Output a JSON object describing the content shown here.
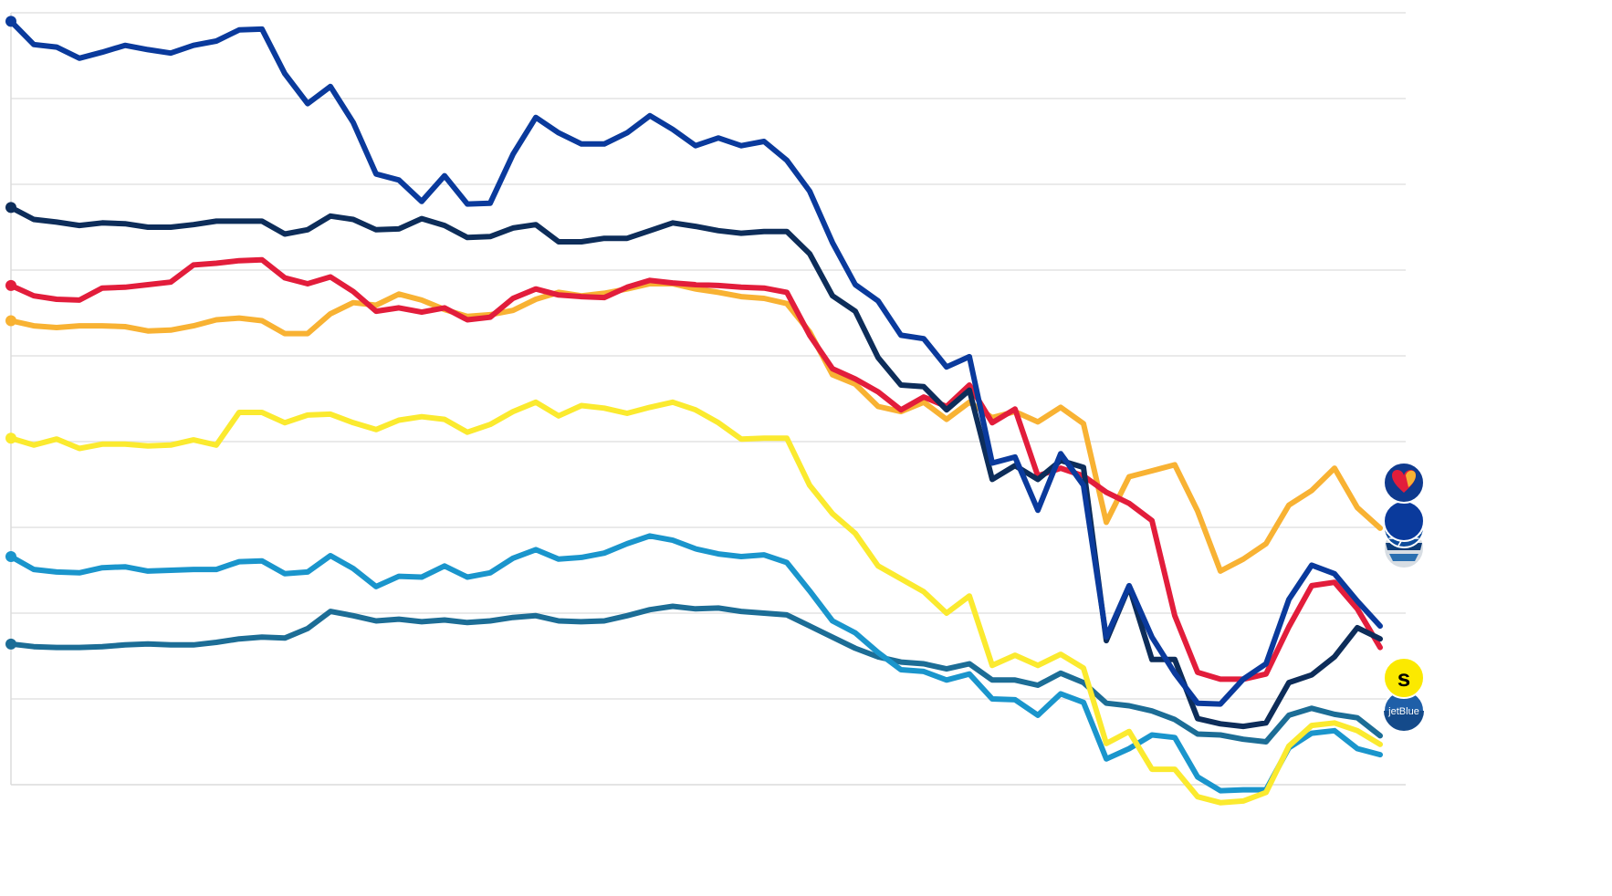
{
  "chart_data": {
    "type": "line",
    "title": "",
    "xlabel": "",
    "ylabel": "",
    "x_count": 61,
    "ylim": [
      0,
      9
    ],
    "grid": "horizontal",
    "series": [
      {
        "logo": "plane-logo-icon",
        "color": "#0a3a9c",
        "values": [
          8.9,
          8.63,
          8.6,
          8.47,
          8.54,
          8.62,
          8.57,
          8.53,
          8.62,
          8.67,
          8.8,
          8.81,
          8.29,
          7.94,
          8.14,
          7.72,
          7.12,
          7.05,
          6.8,
          7.1,
          6.77,
          6.78,
          7.35,
          7.78,
          7.6,
          7.47,
          7.47,
          7.6,
          7.8,
          7.64,
          7.45,
          7.54,
          7.45,
          7.5,
          7.28,
          6.92,
          6.32,
          5.83,
          5.64,
          5.24,
          5.2,
          4.87,
          4.99,
          3.75,
          3.82,
          3.2,
          3.86,
          3.49,
          1.72,
          2.32,
          1.72,
          1.3,
          0.95,
          0.94,
          1.23,
          1.41,
          2.16,
          2.56,
          2.46,
          2.14,
          1.85
        ]
      },
      {
        "logo": "united-globe-logo-icon",
        "color": "#0d2d5a",
        "values": [
          6.73,
          6.59,
          6.56,
          6.52,
          6.55,
          6.54,
          6.5,
          6.5,
          6.53,
          6.57,
          6.57,
          6.57,
          6.42,
          6.47,
          6.63,
          6.59,
          6.47,
          6.48,
          6.6,
          6.52,
          6.38,
          6.39,
          6.49,
          6.53,
          6.33,
          6.33,
          6.37,
          6.37,
          6.46,
          6.55,
          6.51,
          6.46,
          6.43,
          6.45,
          6.45,
          6.19,
          5.7,
          5.52,
          4.98,
          4.66,
          4.64,
          4.37,
          4.6,
          3.56,
          3.72,
          3.56,
          3.78,
          3.7,
          1.68,
          2.31,
          1.46,
          1.46,
          0.77,
          0.71,
          0.68,
          0.72,
          1.19,
          1.28,
          1.49,
          1.83,
          1.7
        ]
      },
      {
        "logo": "eagle-logo-icon",
        "color": "#e21d3b",
        "values": [
          5.82,
          5.7,
          5.66,
          5.65,
          5.79,
          5.8,
          5.83,
          5.86,
          6.06,
          6.08,
          6.11,
          6.12,
          5.91,
          5.84,
          5.92,
          5.75,
          5.52,
          5.56,
          5.51,
          5.56,
          5.42,
          5.45,
          5.67,
          5.78,
          5.71,
          5.69,
          5.68,
          5.8,
          5.88,
          5.85,
          5.83,
          5.82,
          5.8,
          5.79,
          5.74,
          5.24,
          4.85,
          4.73,
          4.58,
          4.37,
          4.52,
          4.41,
          4.66,
          4.22,
          4.38,
          3.6,
          3.69,
          3.6,
          3.41,
          3.28,
          3.08,
          1.97,
          1.31,
          1.23,
          1.23,
          1.29,
          1.84,
          2.32,
          2.36,
          2.05,
          1.6
        ]
      },
      {
        "logo": "southwest-heart-logo-icon",
        "color": "#f8b233",
        "values": [
          5.41,
          5.35,
          5.33,
          5.35,
          5.35,
          5.34,
          5.29,
          5.3,
          5.35,
          5.42,
          5.44,
          5.41,
          5.26,
          5.26,
          5.49,
          5.62,
          5.59,
          5.72,
          5.65,
          5.54,
          5.46,
          5.48,
          5.53,
          5.66,
          5.74,
          5.7,
          5.73,
          5.78,
          5.84,
          5.84,
          5.78,
          5.74,
          5.69,
          5.67,
          5.61,
          5.28,
          4.78,
          4.67,
          4.41,
          4.35,
          4.46,
          4.26,
          4.46,
          4.28,
          4.35,
          4.23,
          4.4,
          4.21,
          3.06,
          3.59,
          3.66,
          3.73,
          3.19,
          2.49,
          2.63,
          2.81,
          3.26,
          3.43,
          3.69,
          3.23,
          2.99
        ]
      },
      {
        "logo": "spirit-s-logo-icon",
        "color": "#fbea2f",
        "values": [
          4.04,
          3.96,
          4.03,
          3.92,
          3.97,
          3.97,
          3.95,
          3.96,
          4.02,
          3.96,
          4.34,
          4.34,
          4.22,
          4.31,
          4.32,
          4.22,
          4.14,
          4.25,
          4.29,
          4.26,
          4.11,
          4.2,
          4.35,
          4.46,
          4.3,
          4.42,
          4.39,
          4.33,
          4.4,
          4.46,
          4.37,
          4.22,
          4.03,
          4.04,
          4.04,
          3.49,
          3.16,
          2.93,
          2.55,
          2.4,
          2.25,
          2.0,
          2.2,
          1.39,
          1.51,
          1.39,
          1.52,
          1.36,
          0.48,
          0.62,
          0.18,
          0.18,
          -0.14,
          -0.21,
          -0.19,
          -0.09,
          0.45,
          0.69,
          0.72,
          0.63,
          0.47
        ]
      },
      {
        "logo": "jetblue-logo-icon",
        "color": "#1a95cc",
        "values": [
          2.66,
          2.51,
          2.48,
          2.47,
          2.53,
          2.54,
          2.49,
          2.5,
          2.51,
          2.51,
          2.6,
          2.61,
          2.46,
          2.48,
          2.67,
          2.52,
          2.31,
          2.43,
          2.42,
          2.55,
          2.42,
          2.47,
          2.64,
          2.74,
          2.63,
          2.65,
          2.7,
          2.81,
          2.9,
          2.85,
          2.75,
          2.69,
          2.66,
          2.68,
          2.59,
          2.26,
          1.91,
          1.77,
          1.54,
          1.34,
          1.32,
          1.22,
          1.29,
          1.0,
          0.99,
          0.81,
          1.06,
          0.96,
          0.3,
          0.42,
          0.58,
          0.55,
          0.09,
          -0.07,
          -0.06,
          -0.06,
          0.43,
          0.6,
          0.63,
          0.42,
          0.35
        ]
      },
      {
        "logo": "jetblue-tail-logo-icon",
        "color": "#1c6d96",
        "values": [
          1.64,
          1.61,
          1.6,
          1.6,
          1.61,
          1.63,
          1.64,
          1.63,
          1.63,
          1.66,
          1.7,
          1.72,
          1.71,
          1.82,
          2.02,
          1.97,
          1.91,
          1.93,
          1.9,
          1.92,
          1.89,
          1.91,
          1.95,
          1.97,
          1.91,
          1.9,
          1.91,
          1.97,
          2.04,
          2.08,
          2.05,
          2.06,
          2.02,
          2.0,
          1.98,
          1.85,
          1.72,
          1.59,
          1.49,
          1.43,
          1.41,
          1.35,
          1.41,
          1.22,
          1.22,
          1.16,
          1.3,
          1.19,
          0.95,
          0.92,
          0.86,
          0.76,
          0.59,
          0.58,
          0.53,
          0.5,
          0.81,
          0.89,
          0.82,
          0.78,
          0.57
        ]
      }
    ]
  }
}
